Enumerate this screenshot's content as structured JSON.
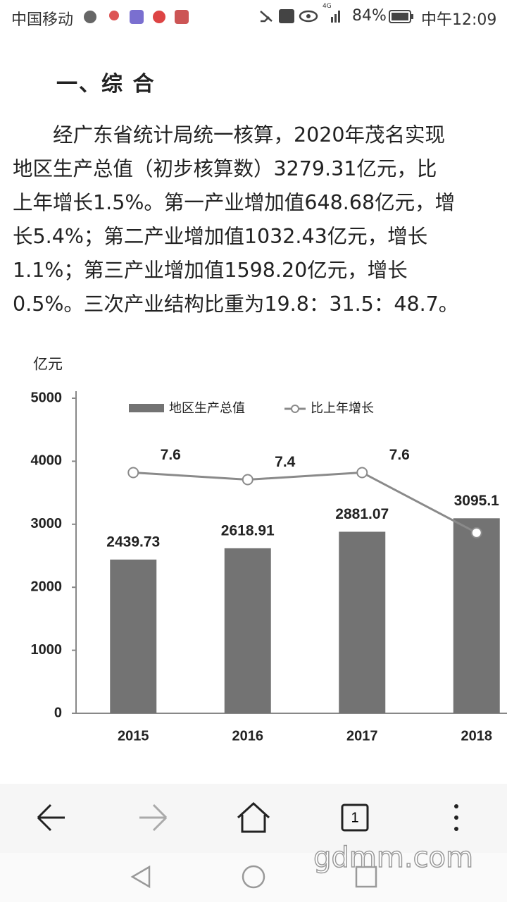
{
  "status_bar": {
    "carrier": "中国移动",
    "network": "4G",
    "battery": "84%",
    "time": "中午12:09"
  },
  "article": {
    "heading": "一、综 合",
    "paragraph": [
      "　　经广东省统计局统一核算，2020年茂名实现",
      "地区生产总值（初步核算数）3279.31亿元，比",
      "上年增长1.5%。第一产业增加值648.68亿元，增",
      "长5.4%；第二产业增加值1032.43亿元，增长",
      "1.1%；第三产业增加值1598.20亿元，增长",
      "0.5%。三次产业结构比重为19.8：31.5：48.7。"
    ]
  },
  "chart_data": {
    "type": "bar",
    "y_label": "亿元",
    "categories": [
      "2015",
      "2016",
      "2017",
      "2018"
    ],
    "series": [
      {
        "name": "地区生产总值",
        "type": "bar",
        "color": "#737373",
        "values": [
          2439.73,
          2618.91,
          2881.07,
          3095.1
        ]
      },
      {
        "name": "比上年增长",
        "type": "line",
        "axis": "y2",
        "color": "#8a8a8a",
        "values": [
          7.6,
          7.4,
          7.6,
          5.9
        ]
      }
    ],
    "ylim": [
      0,
      5000
    ],
    "yticks": [
      0,
      1000,
      2000,
      3000,
      4000,
      5000
    ],
    "y2lim": [
      0.8,
      9.7
    ]
  },
  "browser_bar": {
    "tab_count": "1"
  },
  "watermark": "gdmm.com"
}
